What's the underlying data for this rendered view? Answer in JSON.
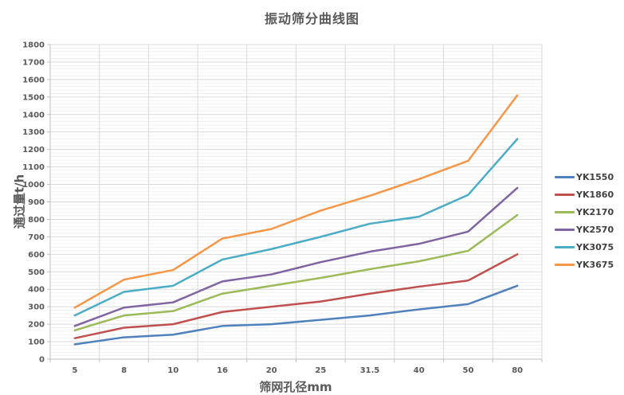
{
  "chart": {
    "title": "振动筛分曲线图",
    "x_axis_title": "筛网孔径mm",
    "y_axis_title": "通过量t/h"
  },
  "colors": {
    "title_text": "#595959",
    "tick_text": "#595959",
    "legend_text": "#404040",
    "axis_line": "#BFBFBF",
    "major_gridline": "#D9D9D9",
    "minor_gridline": "#F2F2F2",
    "background": "#FFFFFF"
  },
  "chart_data": {
    "type": "line",
    "title": "振动筛分曲线图",
    "xlabel": "筛网孔径mm",
    "ylabel": "通过量t/h",
    "categories": [
      "5",
      "8",
      "10",
      "16",
      "20",
      "25",
      "31.5",
      "40",
      "50",
      "80"
    ],
    "ylim": [
      0,
      1800
    ],
    "y_major_step": 100,
    "y_minor_step": 20,
    "grid": true,
    "legend_position": "right",
    "series": [
      {
        "name": "YK1550",
        "color": "#4F81BD",
        "values": [
          85,
          125,
          140,
          190,
          200,
          225,
          250,
          285,
          315,
          420
        ]
      },
      {
        "name": "YK1860",
        "color": "#C0504D",
        "values": [
          120,
          180,
          200,
          270,
          300,
          330,
          375,
          415,
          450,
          600
        ]
      },
      {
        "name": "YK2170",
        "color": "#9BBB59",
        "values": [
          165,
          250,
          275,
          375,
          420,
          465,
          515,
          560,
          620,
          825
        ]
      },
      {
        "name": "YK2570",
        "color": "#8064A2",
        "values": [
          190,
          295,
          325,
          445,
          485,
          555,
          615,
          660,
          730,
          980
        ]
      },
      {
        "name": "YK3075",
        "color": "#4BACC6",
        "values": [
          250,
          385,
          420,
          570,
          630,
          700,
          775,
          815,
          940,
          1260
        ]
      },
      {
        "name": "YK3675",
        "color": "#F79646",
        "values": [
          295,
          455,
          510,
          690,
          745,
          850,
          935,
          1030,
          1135,
          1510
        ]
      }
    ]
  }
}
